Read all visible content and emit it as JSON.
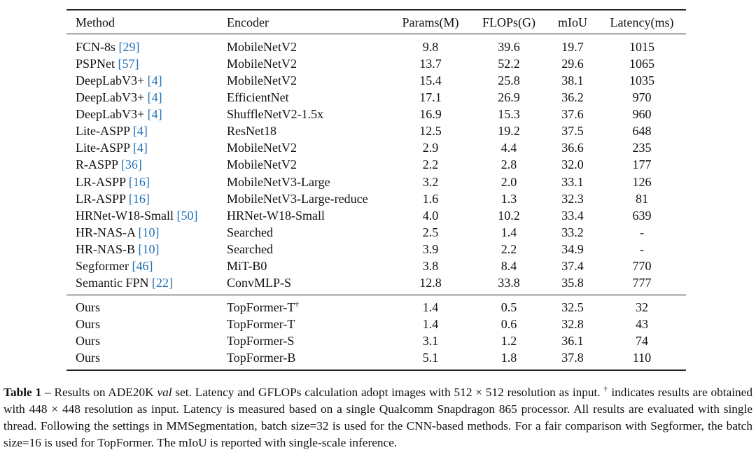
{
  "table": {
    "columns": [
      "Method",
      "Encoder",
      "Params(M)",
      "FLOPs(G)",
      "mIoU",
      "Latency(ms)"
    ],
    "baselines": [
      {
        "method": "FCN-8s",
        "cite": "[29]",
        "encoder": "MobileNetV2",
        "params": "9.8",
        "flops": "39.6",
        "miou": "19.7",
        "latency": "1015"
      },
      {
        "method": "PSPNet",
        "cite": "[57]",
        "encoder": "MobileNetV2",
        "params": "13.7",
        "flops": "52.2",
        "miou": "29.6",
        "latency": "1065"
      },
      {
        "method": "DeepLabV3+",
        "cite": "[4]",
        "encoder": "MobileNetV2",
        "params": "15.4",
        "flops": "25.8",
        "miou": "38.1",
        "latency": "1035"
      },
      {
        "method": "DeepLabV3+",
        "cite": "[4]",
        "encoder": "EfficientNet",
        "params": "17.1",
        "flops": "26.9",
        "miou": "36.2",
        "latency": "970"
      },
      {
        "method": "DeepLabV3+",
        "cite": "[4]",
        "encoder": "ShuffleNetV2-1.5x",
        "params": "16.9",
        "flops": "15.3",
        "miou": "37.6",
        "latency": "960"
      },
      {
        "method": "Lite-ASPP",
        "cite": "[4]",
        "encoder": "ResNet18",
        "params": "12.5",
        "flops": "19.2",
        "miou": "37.5",
        "latency": "648"
      },
      {
        "method": "Lite-ASPP",
        "cite": "[4]",
        "encoder": "MobileNetV2",
        "params": "2.9",
        "flops": "4.4",
        "miou": "36.6",
        "latency": "235"
      },
      {
        "method": "R-ASPP",
        "cite": "[36]",
        "encoder": "MobileNetV2",
        "params": "2.2",
        "flops": "2.8",
        "miou": "32.0",
        "latency": "177"
      },
      {
        "method": "LR-ASPP",
        "cite": "[16]",
        "encoder": "MobileNetV3-Large",
        "params": "3.2",
        "flops": "2.0",
        "miou": "33.1",
        "latency": "126"
      },
      {
        "method": "LR-ASPP",
        "cite": "[16]",
        "encoder": "MobileNetV3-Large-reduce",
        "params": "1.6",
        "flops": "1.3",
        "miou": "32.3",
        "latency": "81"
      },
      {
        "method": "HRNet-W18-Small",
        "cite": "[50]",
        "encoder": "HRNet-W18-Small",
        "params": "4.0",
        "flops": "10.2",
        "miou": "33.4",
        "latency": "639"
      },
      {
        "method": "HR-NAS-A",
        "cite": "[10]",
        "encoder": "Searched",
        "params": "2.5",
        "flops": "1.4",
        "miou": "33.2",
        "latency": "-"
      },
      {
        "method": "HR-NAS-B",
        "cite": "[10]",
        "encoder": "Searched",
        "params": "3.9",
        "flops": "2.2",
        "miou": "34.9",
        "latency": "-"
      },
      {
        "method": "Segformer",
        "cite": "[46]",
        "encoder": "MiT-B0",
        "params": "3.8",
        "flops": "8.4",
        "miou": "37.4",
        "latency": "770"
      },
      {
        "method": "Semantic FPN",
        "cite": "[22]",
        "encoder": "ConvMLP-S",
        "params": "12.8",
        "flops": "33.8",
        "miou": "35.8",
        "latency": "777"
      }
    ],
    "ours": [
      {
        "method": "Ours",
        "encoder": "TopFormer-T",
        "mark": "†",
        "params": "1.4",
        "flops": "0.5",
        "miou": "32.5",
        "latency": "32"
      },
      {
        "method": "Ours",
        "encoder": "TopFormer-T",
        "params": "1.4",
        "flops": "0.6",
        "miou": "32.8",
        "latency": "43"
      },
      {
        "method": "Ours",
        "encoder": "TopFormer-S",
        "params": "3.1",
        "flops": "1.2",
        "miou": "36.1",
        "latency": "74"
      },
      {
        "method": "Ours",
        "encoder": "TopFormer-B",
        "params": "5.1",
        "flops": "1.8",
        "miou": "37.8",
        "latency": "110"
      }
    ]
  },
  "caption": {
    "label": "Table 1",
    "parts": [
      " – Results on ADE20K ",
      "val",
      " set. Latency and GFLOPs calculation adopt images with 512 × 512 resolution as input. ",
      "†",
      " indicates results are obtained with 448 × 448 resolution as input. Latency is measured based on a single Qualcomm Snapdragon 865 processor. All results are evaluated with single thread. Following the settings in MMSegmentation, batch size=32 is used for the CNN-based methods. For a fair comparison with Segformer, the batch size=16 is used for TopFormer. The mIoU is reported with single-scale inference."
    ]
  }
}
